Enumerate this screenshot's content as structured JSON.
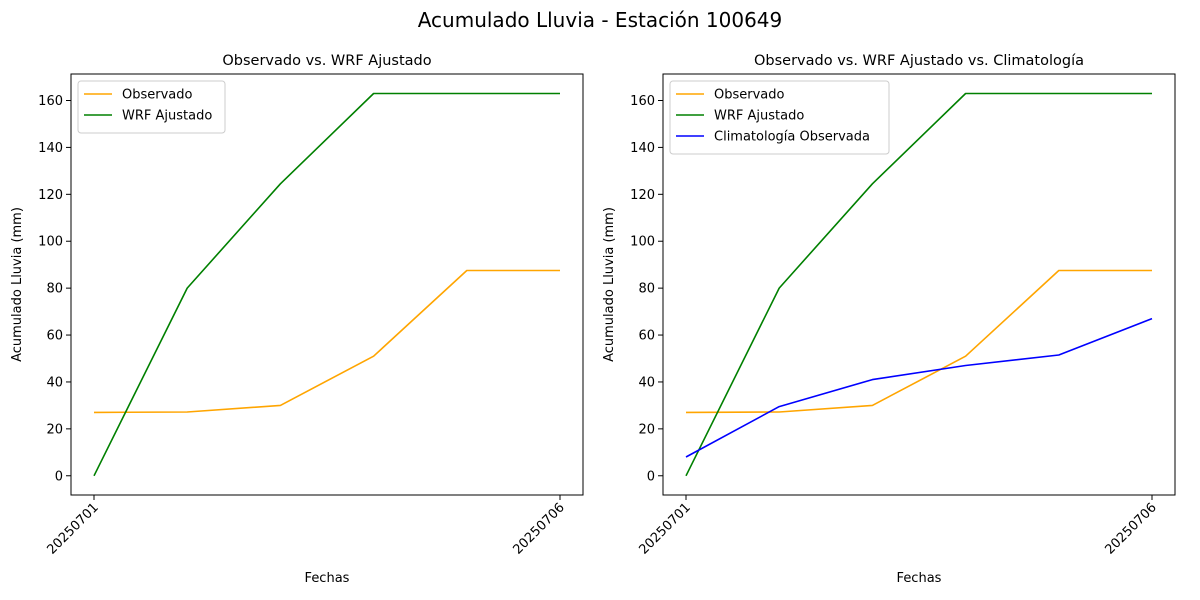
{
  "suptitle": "Acumulado Lluvia - Estación 100649",
  "colors": {
    "observado": "#ffa500",
    "wrf": "#008000",
    "clima": "#0000ff"
  },
  "chart_data": [
    {
      "type": "line",
      "title": "Observado vs. WRF Ajustado",
      "xlabel": "Fechas",
      "ylabel": "Acumulado Lluvia (mm)",
      "x": [
        "20250701",
        "20250702",
        "20250703",
        "20250704",
        "20250705",
        "20250706"
      ],
      "xtick_labels": [
        "20250701",
        "20250706"
      ],
      "ylim": [
        -8.2,
        171.3
      ],
      "yticks": [
        0,
        20,
        40,
        60,
        80,
        100,
        120,
        140,
        160
      ],
      "grid": false,
      "legend": "top-left",
      "series": [
        {
          "name": "Observado",
          "color": "#ffa500",
          "values": [
            27,
            27.2,
            30,
            51,
            87.5,
            87.5
          ]
        },
        {
          "name": "WRF Ajustado",
          "color": "#008000",
          "values": [
            0,
            80,
            124.5,
            163,
            163,
            163
          ]
        }
      ]
    },
    {
      "type": "line",
      "title": "Observado vs. WRF Ajustado vs. Climatología",
      "xlabel": "Fechas",
      "ylabel": "Acumulado Lluvia (mm)",
      "x": [
        "20250701",
        "20250702",
        "20250703",
        "20250704",
        "20250705",
        "20250706"
      ],
      "xtick_labels": [
        "20250701",
        "20250706"
      ],
      "ylim": [
        -8.2,
        171.3
      ],
      "yticks": [
        0,
        20,
        40,
        60,
        80,
        100,
        120,
        140,
        160
      ],
      "grid": false,
      "legend": "top-left",
      "series": [
        {
          "name": "Observado",
          "color": "#ffa500",
          "values": [
            27,
            27.2,
            30,
            51,
            87.5,
            87.5
          ]
        },
        {
          "name": "WRF Ajustado",
          "color": "#008000",
          "values": [
            0,
            80,
            124.5,
            163,
            163,
            163
          ]
        },
        {
          "name": "Climatología Observada",
          "color": "#0000ff",
          "values": [
            8,
            29.5,
            41,
            47,
            51.5,
            67
          ]
        }
      ]
    }
  ]
}
